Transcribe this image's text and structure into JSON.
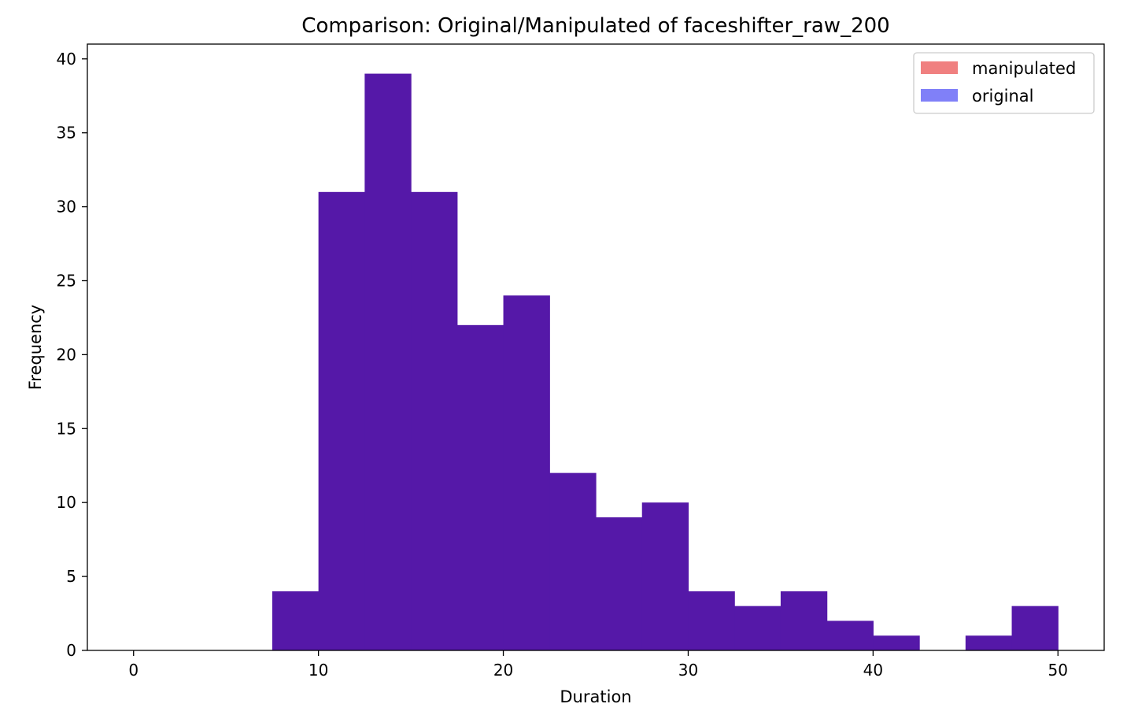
{
  "chart_data": {
    "type": "bar",
    "title": "Comparison: Original/Manipulated of faceshifter_raw_200",
    "xlabel": "Duration",
    "ylabel": "Frequency",
    "xlim": [
      -2.5,
      52.5
    ],
    "ylim": [
      0,
      41
    ],
    "x_ticks": [
      0,
      10,
      20,
      30,
      40,
      50
    ],
    "y_ticks": [
      0,
      5,
      10,
      15,
      20,
      25,
      30,
      35,
      40
    ],
    "grid": false,
    "legend_position": "top-right",
    "bin_edges": [
      7.5,
      10,
      12.5,
      15,
      17.5,
      20,
      22.5,
      25,
      27.5,
      30,
      32.5,
      35,
      37.5,
      40,
      42.5,
      45,
      47.5,
      50
    ],
    "series": [
      {
        "name": "manipulated",
        "color": "#f08080",
        "values": [
          4,
          31,
          39,
          31,
          22,
          24,
          12,
          9,
          10,
          4,
          3,
          4,
          2,
          1,
          0,
          1,
          3
        ]
      },
      {
        "name": "original",
        "color": "#8080f8",
        "values": [
          4,
          31,
          39,
          31,
          22,
          24,
          12,
          9,
          10,
          4,
          3,
          4,
          2,
          1,
          0,
          1,
          3
        ]
      }
    ],
    "overlap_color": "#5518a8"
  }
}
